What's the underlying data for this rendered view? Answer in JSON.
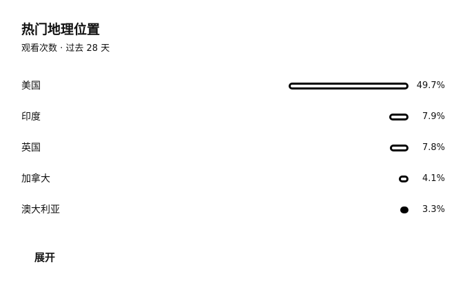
{
  "panel": {
    "title": "热门地理位置",
    "subtitle": "观看次数 · 过去 28 天"
  },
  "locations": [
    {
      "name": "美国",
      "value_label": "49.7%",
      "share": 49.7
    },
    {
      "name": "印度",
      "value_label": "7.9%",
      "share": 7.9
    },
    {
      "name": "英国",
      "value_label": "7.8%",
      "share": 7.8
    },
    {
      "name": "加拿大",
      "value_label": "4.1%",
      "share": 4.1
    },
    {
      "name": "澳大利亚",
      "value_label": "3.3%",
      "share": 3.3
    }
  ],
  "actions": {
    "expand_label": "展开"
  },
  "colors": {
    "bar_stroke": "#000000",
    "text": "#111111",
    "background": "#ffffff"
  }
}
